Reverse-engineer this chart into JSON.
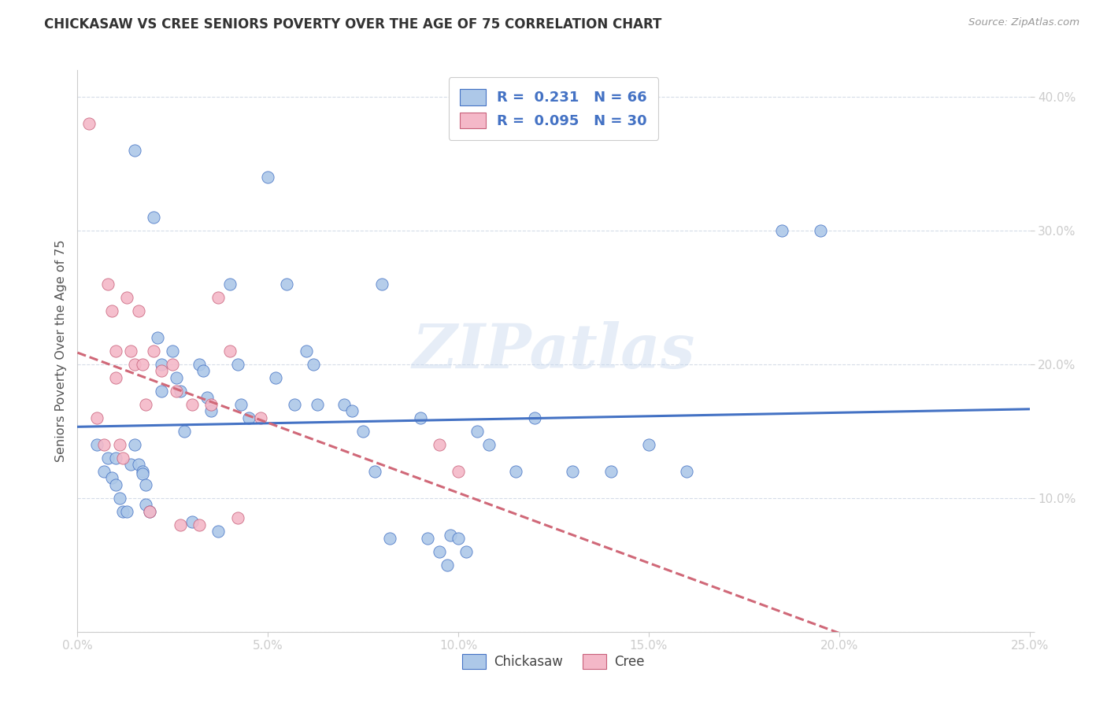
{
  "title": "CHICKASAW VS CREE SENIORS POVERTY OVER THE AGE OF 75 CORRELATION CHART",
  "source": "Source: ZipAtlas.com",
  "ylabel": "Seniors Poverty Over the Age of 75",
  "label_chickasaw": "Chickasaw",
  "label_cree": "Cree",
  "xmin": 0.0,
  "xmax": 0.25,
  "ymin": 0.0,
  "ymax": 0.42,
  "xticks": [
    0.0,
    0.05,
    0.1,
    0.15,
    0.2,
    0.25
  ],
  "yticks": [
    0.0,
    0.1,
    0.2,
    0.3,
    0.4
  ],
  "xtick_labels": [
    "0.0%",
    "5.0%",
    "10.0%",
    "15.0%",
    "20.0%",
    "25.0%"
  ],
  "ytick_labels": [
    "",
    "10.0%",
    "20.0%",
    "30.0%",
    "40.0%"
  ],
  "R_chickasaw": 0.231,
  "N_chickasaw": 66,
  "R_cree": 0.095,
  "N_cree": 30,
  "chickasaw_face": "#adc8e8",
  "chickasaw_edge": "#4472c4",
  "cree_face": "#f4b8c8",
  "cree_edge": "#c8607a",
  "chickasaw_line": "#4472c4",
  "cree_line": "#d06878",
  "watermark": "ZIPatlas",
  "chickasaw_x": [
    0.005,
    0.007,
    0.008,
    0.009,
    0.01,
    0.01,
    0.011,
    0.012,
    0.013,
    0.014,
    0.015,
    0.015,
    0.016,
    0.017,
    0.017,
    0.018,
    0.018,
    0.019,
    0.02,
    0.021,
    0.022,
    0.022,
    0.025,
    0.026,
    0.027,
    0.028,
    0.03,
    0.032,
    0.033,
    0.034,
    0.035,
    0.037,
    0.04,
    0.042,
    0.043,
    0.045,
    0.05,
    0.052,
    0.055,
    0.057,
    0.06,
    0.062,
    0.063,
    0.07,
    0.072,
    0.075,
    0.078,
    0.08,
    0.082,
    0.09,
    0.092,
    0.095,
    0.097,
    0.098,
    0.1,
    0.102,
    0.105,
    0.108,
    0.115,
    0.12,
    0.13,
    0.14,
    0.15,
    0.16,
    0.185,
    0.195
  ],
  "chickasaw_y": [
    0.14,
    0.12,
    0.13,
    0.115,
    0.11,
    0.13,
    0.1,
    0.09,
    0.09,
    0.125,
    0.36,
    0.14,
    0.125,
    0.12,
    0.118,
    0.11,
    0.095,
    0.09,
    0.31,
    0.22,
    0.2,
    0.18,
    0.21,
    0.19,
    0.18,
    0.15,
    0.082,
    0.2,
    0.195,
    0.175,
    0.165,
    0.075,
    0.26,
    0.2,
    0.17,
    0.16,
    0.34,
    0.19,
    0.26,
    0.17,
    0.21,
    0.2,
    0.17,
    0.17,
    0.165,
    0.15,
    0.12,
    0.26,
    0.07,
    0.16,
    0.07,
    0.06,
    0.05,
    0.072,
    0.07,
    0.06,
    0.15,
    0.14,
    0.12,
    0.16,
    0.12,
    0.12,
    0.14,
    0.12,
    0.3,
    0.3
  ],
  "cree_x": [
    0.003,
    0.005,
    0.007,
    0.008,
    0.009,
    0.01,
    0.01,
    0.011,
    0.012,
    0.013,
    0.014,
    0.015,
    0.016,
    0.017,
    0.018,
    0.019,
    0.02,
    0.022,
    0.025,
    0.026,
    0.027,
    0.03,
    0.032,
    0.035,
    0.037,
    0.04,
    0.042,
    0.048,
    0.095,
    0.1
  ],
  "cree_y": [
    0.38,
    0.16,
    0.14,
    0.26,
    0.24,
    0.21,
    0.19,
    0.14,
    0.13,
    0.25,
    0.21,
    0.2,
    0.24,
    0.2,
    0.17,
    0.09,
    0.21,
    0.195,
    0.2,
    0.18,
    0.08,
    0.17,
    0.08,
    0.17,
    0.25,
    0.21,
    0.085,
    0.16,
    0.14,
    0.12
  ]
}
